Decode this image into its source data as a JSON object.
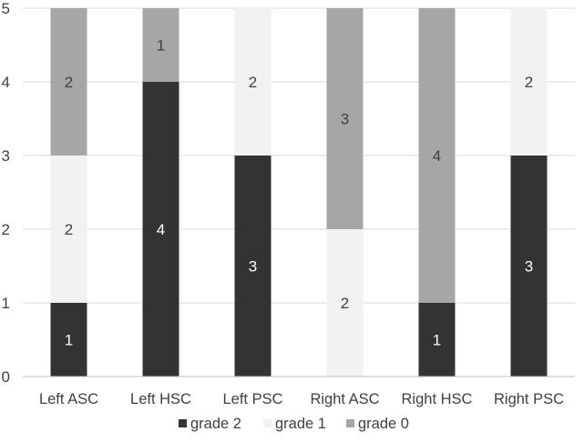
{
  "chart_data": {
    "type": "bar",
    "stacked": true,
    "categories": [
      "Left ASC",
      "Left HSC",
      "Left PSC",
      "Right ASC",
      "Right HSC",
      "Right PSC"
    ],
    "series": [
      {
        "name": "grade 2",
        "color": "#333333",
        "label_color": "#ffffff",
        "values": [
          1,
          4,
          3,
          0,
          1,
          3
        ]
      },
      {
        "name": "grade 1",
        "color": "#f2f2f2",
        "label_color": "#404040",
        "values": [
          2,
          0,
          2,
          2,
          0,
          2
        ]
      },
      {
        "name": "grade 0",
        "color": "#a6a6a6",
        "label_color": "#404040",
        "values": [
          2,
          1,
          0,
          3,
          4,
          0
        ]
      }
    ],
    "ylim": [
      0,
      5
    ],
    "yticks": [
      0,
      1,
      2,
      3,
      4,
      5
    ],
    "title": "",
    "xlabel": "",
    "ylabel": "",
    "grid": true,
    "legend_position": "bottom"
  }
}
